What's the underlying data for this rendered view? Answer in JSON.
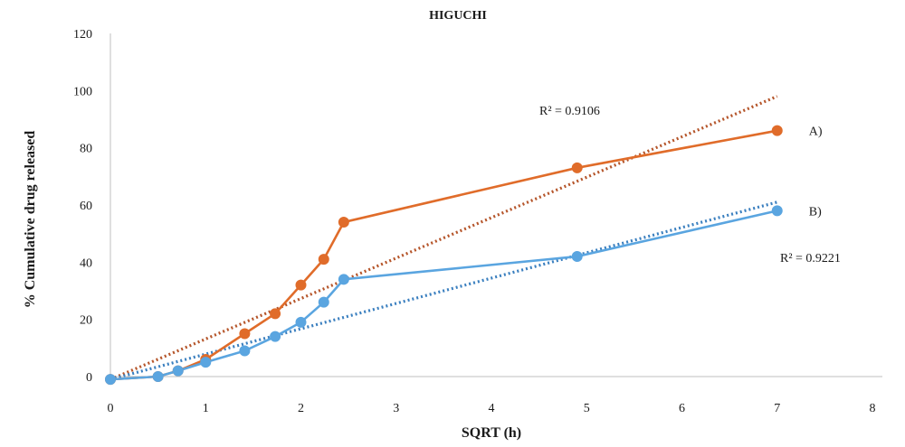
{
  "chart_data": {
    "type": "line",
    "title": "HIGUCHI",
    "xlabel": "SQRT (h)",
    "ylabel": "% Cumulative drug released",
    "xlim": [
      0,
      8
    ],
    "ylim": [
      0,
      120
    ],
    "x_ticks": [
      "0",
      "1",
      "2",
      "3",
      "4",
      "5",
      "6",
      "7",
      "8"
    ],
    "y_ticks": [
      "0",
      "20",
      "40",
      "60",
      "80",
      "100",
      "120"
    ],
    "grid": false,
    "series": [
      {
        "name": "A)",
        "color": "#e06c2a",
        "x": [
          0,
          0.5,
          0.71,
          1.0,
          1.41,
          1.73,
          2.0,
          2.24,
          2.45,
          4.9,
          7.0
        ],
        "y": [
          -1,
          0,
          2,
          6,
          15,
          22,
          32,
          41,
          54,
          73,
          86
        ],
        "trendline": {
          "x": [
            0,
            7.0
          ],
          "y": [
            -1,
            98
          ]
        }
      },
      {
        "name": "B)",
        "color": "#5aa5e0",
        "x": [
          0,
          0.5,
          0.71,
          1.0,
          1.41,
          1.73,
          2.0,
          2.24,
          2.45,
          4.9,
          7.0
        ],
        "y": [
          -1,
          0,
          2,
          5,
          9,
          14,
          19,
          26,
          34,
          42,
          58
        ],
        "trendline": {
          "x": [
            0,
            7.0
          ],
          "y": [
            -1,
            61
          ]
        }
      }
    ],
    "annotations": [
      {
        "text": "R² = 0.9106"
      },
      {
        "text": "R² = 0.9221"
      }
    ]
  }
}
